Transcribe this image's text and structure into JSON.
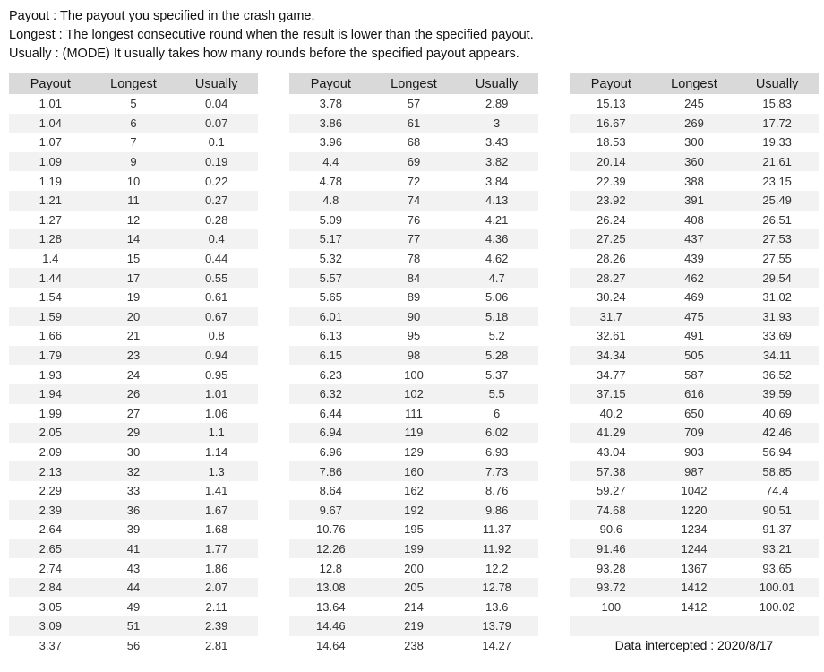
{
  "description": {
    "lines": [
      "Payout : The payout you specified in the crash game.",
      "Longest : The longest consecutive round when the result is lower than the specified payout.",
      "Usually : (MODE) It usually takes how many rounds before the specified payout appears."
    ]
  },
  "columns": [
    "Payout",
    "Longest",
    "Usually"
  ],
  "tables": [
    {
      "rows": [
        [
          "1.01",
          "5",
          "0.04"
        ],
        [
          "1.04",
          "6",
          "0.07"
        ],
        [
          "1.07",
          "7",
          "0.1"
        ],
        [
          "1.09",
          "9",
          "0.19"
        ],
        [
          "1.19",
          "10",
          "0.22"
        ],
        [
          "1.21",
          "11",
          "0.27"
        ],
        [
          "1.27",
          "12",
          "0.28"
        ],
        [
          "1.28",
          "14",
          "0.4"
        ],
        [
          "1.4",
          "15",
          "0.44"
        ],
        [
          "1.44",
          "17",
          "0.55"
        ],
        [
          "1.54",
          "19",
          "0.61"
        ],
        [
          "1.59",
          "20",
          "0.67"
        ],
        [
          "1.66",
          "21",
          "0.8"
        ],
        [
          "1.79",
          "23",
          "0.94"
        ],
        [
          "1.93",
          "24",
          "0.95"
        ],
        [
          "1.94",
          "26",
          "1.01"
        ],
        [
          "1.99",
          "27",
          "1.06"
        ],
        [
          "2.05",
          "29",
          "1.1"
        ],
        [
          "2.09",
          "30",
          "1.14"
        ],
        [
          "2.13",
          "32",
          "1.3"
        ],
        [
          "2.29",
          "33",
          "1.41"
        ],
        [
          "2.39",
          "36",
          "1.67"
        ],
        [
          "2.64",
          "39",
          "1.68"
        ],
        [
          "2.65",
          "41",
          "1.77"
        ],
        [
          "2.74",
          "43",
          "1.86"
        ],
        [
          "2.84",
          "44",
          "2.07"
        ],
        [
          "3.05",
          "49",
          "2.11"
        ],
        [
          "3.09",
          "51",
          "2.39"
        ],
        [
          "3.37",
          "56",
          "2.81"
        ]
      ]
    },
    {
      "rows": [
        [
          "3.78",
          "57",
          "2.89"
        ],
        [
          "3.86",
          "61",
          "3"
        ],
        [
          "3.96",
          "68",
          "3.43"
        ],
        [
          "4.4",
          "69",
          "3.82"
        ],
        [
          "4.78",
          "72",
          "3.84"
        ],
        [
          "4.8",
          "74",
          "4.13"
        ],
        [
          "5.09",
          "76",
          "4.21"
        ],
        [
          "5.17",
          "77",
          "4.36"
        ],
        [
          "5.32",
          "78",
          "4.62"
        ],
        [
          "5.57",
          "84",
          "4.7"
        ],
        [
          "5.65",
          "89",
          "5.06"
        ],
        [
          "6.01",
          "90",
          "5.18"
        ],
        [
          "6.13",
          "95",
          "5.2"
        ],
        [
          "6.15",
          "98",
          "5.28"
        ],
        [
          "6.23",
          "100",
          "5.37"
        ],
        [
          "6.32",
          "102",
          "5.5"
        ],
        [
          "6.44",
          "111",
          "6"
        ],
        [
          "6.94",
          "119",
          "6.02"
        ],
        [
          "6.96",
          "129",
          "6.93"
        ],
        [
          "7.86",
          "160",
          "7.73"
        ],
        [
          "8.64",
          "162",
          "8.76"
        ],
        [
          "9.67",
          "192",
          "9.86"
        ],
        [
          "10.76",
          "195",
          "11.37"
        ],
        [
          "12.26",
          "199",
          "11.92"
        ],
        [
          "12.8",
          "200",
          "12.2"
        ],
        [
          "13.08",
          "205",
          "12.78"
        ],
        [
          "13.64",
          "214",
          "13.6"
        ],
        [
          "14.46",
          "219",
          "13.79"
        ],
        [
          "14.64",
          "238",
          "14.27"
        ]
      ]
    },
    {
      "rows": [
        [
          "15.13",
          "245",
          "15.83"
        ],
        [
          "16.67",
          "269",
          "17.72"
        ],
        [
          "18.53",
          "300",
          "19.33"
        ],
        [
          "20.14",
          "360",
          "21.61"
        ],
        [
          "22.39",
          "388",
          "23.15"
        ],
        [
          "23.92",
          "391",
          "25.49"
        ],
        [
          "26.24",
          "408",
          "26.51"
        ],
        [
          "27.25",
          "437",
          "27.53"
        ],
        [
          "28.26",
          "439",
          "27.55"
        ],
        [
          "28.27",
          "462",
          "29.54"
        ],
        [
          "30.24",
          "469",
          "31.02"
        ],
        [
          "31.7",
          "475",
          "31.93"
        ],
        [
          "32.61",
          "491",
          "33.69"
        ],
        [
          "34.34",
          "505",
          "34.11"
        ],
        [
          "34.77",
          "587",
          "36.52"
        ],
        [
          "37.15",
          "616",
          "39.59"
        ],
        [
          "40.2",
          "650",
          "40.69"
        ],
        [
          "41.29",
          "709",
          "42.46"
        ],
        [
          "43.04",
          "903",
          "56.94"
        ],
        [
          "57.38",
          "987",
          "58.85"
        ],
        [
          "59.27",
          "1042",
          "74.4"
        ],
        [
          "74.68",
          "1220",
          "90.51"
        ],
        [
          "90.6",
          "1234",
          "91.37"
        ],
        [
          "91.46",
          "1244",
          "93.21"
        ],
        [
          "93.28",
          "1367",
          "93.65"
        ],
        [
          "93.72",
          "1412",
          "100.01"
        ],
        [
          "100",
          "1412",
          "100.02"
        ]
      ],
      "trailing_empty_row": true,
      "footer_note": "Data intercepted : 2020/8/17"
    }
  ],
  "colors": {
    "header_bg": "#d9d9d9",
    "row_alt_bg": "#f2f2f2",
    "cell_text": "#333333"
  }
}
